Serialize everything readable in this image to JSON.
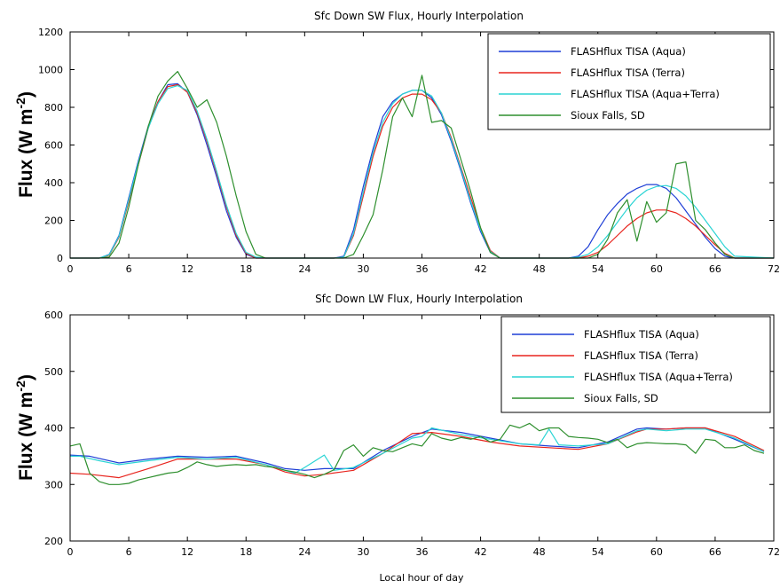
{
  "chart_data": [
    {
      "type": "line",
      "title": "Sfc Down SW Flux, Hourly Interpolation",
      "xlabel": "",
      "ylabel": "Flux (W m",
      "ylabel_sup": "-2",
      "ylabel_end": ")",
      "xlim": [
        0,
        72
      ],
      "ylim": [
        0,
        1200
      ],
      "xticks": [
        0,
        6,
        12,
        18,
        24,
        30,
        36,
        42,
        48,
        54,
        60,
        66,
        72
      ],
      "yticks": [
        0,
        200,
        400,
        600,
        800,
        1000,
        1200
      ],
      "legend_position": "top-right",
      "series": [
        {
          "name": "FLASHflux TISA (Aqua)",
          "color": "#1f3fd6",
          "x": [
            0,
            3,
            4,
            5,
            6,
            7,
            8,
            9,
            10,
            11,
            12,
            13,
            14,
            15,
            16,
            17,
            18,
            19,
            20,
            24,
            27,
            28,
            29,
            30,
            31,
            32,
            33,
            34,
            35,
            36,
            37,
            38,
            39,
            40,
            41,
            42,
            43,
            44,
            48,
            51,
            52,
            53,
            54,
            55,
            56,
            57,
            58,
            59,
            60,
            61,
            62,
            63,
            64,
            65,
            66,
            67,
            68,
            72
          ],
          "y": [
            0,
            0,
            20,
            120,
            320,
            520,
            700,
            830,
            920,
            925,
            880,
            760,
            600,
            430,
            250,
            110,
            20,
            0,
            0,
            0,
            0,
            10,
            150,
            380,
            580,
            750,
            830,
            870,
            890,
            890,
            850,
            760,
            620,
            460,
            290,
            140,
            30,
            0,
            0,
            0,
            10,
            60,
            150,
            230,
            290,
            340,
            370,
            390,
            390,
            370,
            320,
            250,
            180,
            110,
            50,
            10,
            0,
            0
          ]
        },
        {
          "name": "FLASHflux TISA (Terra)",
          "color": "#e8251e",
          "x": [
            0,
            3,
            4,
            5,
            6,
            7,
            8,
            9,
            10,
            11,
            12,
            13,
            14,
            15,
            16,
            17,
            18,
            19,
            20,
            24,
            27,
            28,
            29,
            30,
            31,
            32,
            33,
            34,
            35,
            36,
            37,
            38,
            39,
            40,
            41,
            42,
            43,
            44,
            48,
            51,
            52,
            53,
            54,
            55,
            56,
            57,
            58,
            59,
            60,
            61,
            62,
            63,
            64,
            65,
            66,
            67,
            68,
            72
          ],
          "y": [
            0,
            0,
            15,
            110,
            300,
            500,
            690,
            830,
            910,
            920,
            880,
            770,
            620,
            450,
            270,
            120,
            25,
            0,
            0,
            0,
            0,
            5,
            120,
            330,
            540,
            700,
            800,
            850,
            870,
            870,
            840,
            770,
            640,
            480,
            320,
            160,
            40,
            0,
            0,
            0,
            0,
            10,
            30,
            70,
            120,
            170,
            210,
            240,
            255,
            255,
            240,
            210,
            170,
            120,
            70,
            25,
            0,
            0
          ]
        },
        {
          "name": "FLASHflux TISA (Aqua+Terra)",
          "color": "#2ad4d4",
          "x": [
            0,
            3,
            4,
            5,
            6,
            7,
            8,
            9,
            10,
            11,
            12,
            13,
            14,
            15,
            16,
            17,
            18,
            19,
            20,
            24,
            27,
            28,
            29,
            30,
            31,
            32,
            33,
            34,
            35,
            36,
            37,
            38,
            39,
            40,
            41,
            42,
            43,
            44,
            48,
            51,
            52,
            53,
            54,
            55,
            56,
            57,
            58,
            59,
            60,
            61,
            62,
            63,
            64,
            65,
            66,
            67,
            68,
            72
          ],
          "y": [
            0,
            0,
            18,
            115,
            310,
            510,
            690,
            820,
            900,
            915,
            890,
            780,
            630,
            460,
            280,
            130,
            30,
            5,
            0,
            0,
            0,
            5,
            130,
            350,
            560,
            720,
            820,
            870,
            890,
            890,
            860,
            770,
            630,
            470,
            300,
            150,
            35,
            0,
            0,
            0,
            5,
            20,
            60,
            120,
            190,
            260,
            320,
            360,
            380,
            385,
            370,
            330,
            270,
            200,
            130,
            60,
            10,
            0
          ]
        },
        {
          "name": "Sioux Falls, SD",
          "color": "#2e8f2e",
          "x": [
            0,
            3,
            4,
            5,
            6,
            7,
            8,
            9,
            10,
            11,
            12,
            13,
            14,
            15,
            16,
            17,
            18,
            19,
            20,
            24,
            27,
            28,
            29,
            30,
            31,
            32,
            33,
            34,
            35,
            36,
            37,
            38,
            39,
            40,
            41,
            42,
            43,
            44,
            48,
            51,
            52,
            53,
            54,
            55,
            56,
            57,
            58,
            59,
            60,
            61,
            62,
            63,
            64,
            65,
            66,
            67,
            68,
            72
          ],
          "y": [
            0,
            0,
            5,
            80,
            270,
            500,
            700,
            860,
            940,
            990,
            900,
            800,
            840,
            720,
            540,
            330,
            140,
            20,
            0,
            0,
            0,
            0,
            20,
            120,
            230,
            470,
            750,
            850,
            750,
            970,
            720,
            730,
            690,
            520,
            350,
            160,
            30,
            0,
            0,
            0,
            0,
            0,
            20,
            100,
            240,
            310,
            90,
            300,
            190,
            240,
            500,
            510,
            200,
            150,
            80,
            20,
            0,
            0
          ]
        }
      ]
    },
    {
      "type": "line",
      "title": "Sfc Down LW Flux, Hourly Interpolation",
      "xlabel": "Local hour of day",
      "ylabel": "Flux (W m",
      "ylabel_sup": "-2",
      "ylabel_end": ")",
      "xlim": [
        0,
        72
      ],
      "ylim": [
        200,
        600
      ],
      "xticks": [
        0,
        6,
        12,
        18,
        24,
        30,
        36,
        42,
        48,
        54,
        60,
        66,
        72
      ],
      "yticks": [
        200,
        300,
        400,
        500,
        600
      ],
      "legend_position": "top-right",
      "series": [
        {
          "name": "FLASHflux TISA (Aqua)",
          "color": "#1f3fd6",
          "x": [
            0,
            2,
            5,
            8,
            11,
            14,
            17,
            20,
            22,
            24,
            26,
            29,
            32,
            35,
            37,
            40,
            43,
            46,
            49,
            52,
            55,
            58,
            59,
            61,
            63,
            65,
            68,
            71
          ],
          "y": [
            352,
            350,
            338,
            345,
            350,
            348,
            350,
            338,
            328,
            325,
            328,
            328,
            360,
            385,
            398,
            392,
            382,
            372,
            368,
            365,
            375,
            398,
            400,
            398,
            400,
            400,
            380,
            358
          ]
        },
        {
          "name": "FLASHflux TISA (Terra)",
          "color": "#e8251e",
          "x": [
            0,
            2,
            5,
            8,
            11,
            14,
            17,
            20,
            22,
            24,
            26,
            29,
            32,
            35,
            37,
            40,
            43,
            46,
            49,
            52,
            55,
            58,
            59,
            61,
            63,
            65,
            68,
            71
          ],
          "y": [
            320,
            318,
            312,
            328,
            345,
            345,
            345,
            335,
            322,
            315,
            318,
            325,
            355,
            390,
            392,
            385,
            375,
            368,
            365,
            362,
            372,
            393,
            398,
            398,
            400,
            400,
            385,
            360
          ]
        },
        {
          "name": "FLASHflux TISA (Aqua+Terra)",
          "color": "#2ad4d4",
          "x": [
            0,
            1,
            3,
            5,
            8,
            11,
            14,
            17,
            20,
            23,
            24,
            26,
            27,
            29,
            32,
            35,
            36,
            37,
            40,
            43,
            46,
            48,
            49,
            50,
            52,
            55,
            58,
            59,
            61,
            63,
            65,
            68,
            71
          ],
          "y": [
            350,
            350,
            342,
            335,
            342,
            348,
            345,
            348,
            335,
            320,
            330,
            352,
            325,
            330,
            355,
            382,
            385,
            400,
            388,
            380,
            372,
            370,
            398,
            370,
            368,
            372,
            395,
            398,
            395,
            398,
            398,
            382,
            358
          ]
        },
        {
          "name": "Sioux Falls, SD",
          "color": "#2e8f2e",
          "x": [
            0,
            1,
            2,
            3,
            4,
            5,
            6,
            7,
            8,
            9,
            10,
            11,
            12,
            13,
            14,
            15,
            16,
            17,
            18,
            19,
            20,
            21,
            22,
            23,
            24,
            25,
            26,
            27,
            28,
            29,
            30,
            31,
            32,
            33,
            34,
            35,
            36,
            37,
            38,
            39,
            40,
            41,
            42,
            43,
            44,
            45,
            46,
            47,
            48,
            49,
            50,
            51,
            52,
            53,
            54,
            55,
            56,
            57,
            58,
            59,
            60,
            61,
            62,
            63,
            64,
            65,
            66,
            67,
            68,
            69,
            70,
            71
          ],
          "y": [
            368,
            372,
            320,
            305,
            300,
            300,
            302,
            308,
            312,
            316,
            320,
            322,
            330,
            340,
            335,
            332,
            334,
            335,
            334,
            335,
            332,
            330,
            325,
            322,
            318,
            312,
            318,
            326,
            360,
            370,
            350,
            365,
            360,
            358,
            365,
            372,
            368,
            390,
            382,
            378,
            383,
            380,
            385,
            375,
            380,
            405,
            400,
            408,
            395,
            400,
            400,
            385,
            383,
            382,
            380,
            374,
            380,
            365,
            372,
            374,
            373,
            372,
            372,
            370,
            355,
            380,
            378,
            365,
            365,
            370,
            360,
            355
          ]
        }
      ]
    }
  ]
}
